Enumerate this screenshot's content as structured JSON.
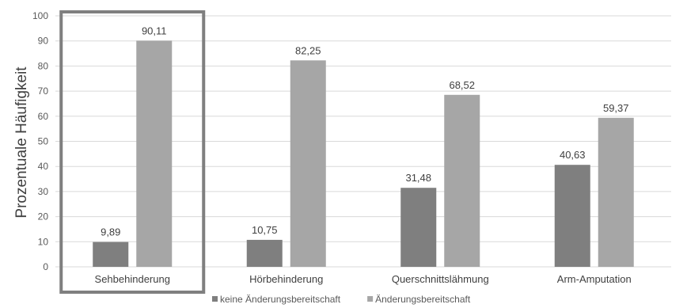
{
  "chart_data": {
    "type": "bar",
    "title": "",
    "xlabel": "",
    "ylabel": "Prozentuale Häufigkeit",
    "ylim": [
      0,
      100
    ],
    "yticks": [
      0,
      10,
      20,
      30,
      40,
      50,
      60,
      70,
      80,
      90,
      100
    ],
    "grid": true,
    "legend_position": "bottom",
    "categories": [
      "Sehbehinderung",
      "Hörbehinderung",
      "Querschnittslähmung",
      "Arm-Amputation"
    ],
    "series": [
      {
        "name": "keine Änderungsbereitschaft",
        "color": "#7f7f7f",
        "values": [
          9.89,
          10.75,
          31.48,
          40.63
        ],
        "labels": [
          "9,89",
          "10,75",
          "31,48",
          "40,63"
        ]
      },
      {
        "name": "Änderungsbereitschaft",
        "color": "#a6a6a6",
        "values": [
          90.11,
          82.25,
          68.52,
          59.37
        ],
        "labels": [
          "90,11",
          "82,25",
          "68,52",
          "59,37"
        ]
      }
    ],
    "highlighted_category": "Sehbehinderung",
    "highlight_color": "#7f7f7f"
  }
}
